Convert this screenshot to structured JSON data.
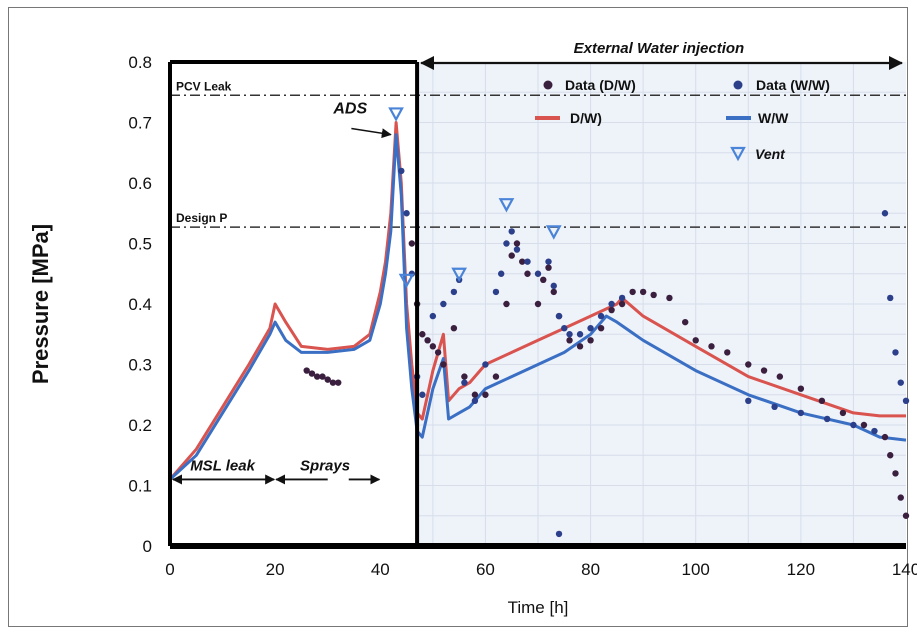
{
  "chart_data": {
    "type": "line",
    "title": "",
    "xlabel": "Time [h]",
    "ylabel": "Pressure [MPa]",
    "xlim": [
      0,
      140
    ],
    "ylim": [
      0,
      0.8
    ],
    "xticks": [
      "0",
      "20",
      "40",
      "60",
      "80",
      "100",
      "120",
      "140"
    ],
    "yticks": [
      "0",
      "0.1",
      "0.2",
      "0.3",
      "0.4",
      "0.5",
      "0.6",
      "0.7",
      "0.8"
    ],
    "legend_position": "top-right",
    "legend": {
      "data_dw": "Data (D/W)",
      "data_ww": "Data (W/W)",
      "dw": "D/W)",
      "ww": "W/W",
      "vent": "Vent"
    },
    "reference_lines": [
      {
        "label": "PCV Leak",
        "y": 0.745
      },
      {
        "label": "Design P",
        "y": 0.527
      }
    ],
    "annotations": {
      "ads": "ADS",
      "external_water": "External Water injection",
      "msl_leak": "MSL leak",
      "sprays": "Sprays"
    },
    "phases": [
      {
        "label": "MSL leak",
        "x": [
          0,
          20
        ]
      },
      {
        "label": "Sprays",
        "x": [
          21,
          40
        ]
      },
      {
        "label": "External Water injection",
        "x": [
          47,
          140
        ]
      }
    ],
    "colors": {
      "dw": "#d9534f",
      "ww": "#3a6fc4",
      "data_dw": "#3a1f3f",
      "data_ww": "#2b3f8a",
      "vent": "#4a84d8",
      "shade": "#eef2f9"
    },
    "series": [
      {
        "name": "D/W)",
        "color": "#d9534f",
        "x": [
          0,
          5,
          10,
          15,
          19,
          20,
          22,
          25,
          30,
          35,
          38,
          40,
          41,
          42,
          43,
          44,
          45,
          46,
          47,
          48,
          50,
          52,
          53,
          55,
          57,
          60,
          65,
          70,
          75,
          80,
          85,
          86,
          90,
          100,
          110,
          120,
          130,
          135,
          140
        ],
        "y": [
          0.11,
          0.16,
          0.23,
          0.3,
          0.36,
          0.4,
          0.37,
          0.33,
          0.325,
          0.33,
          0.35,
          0.42,
          0.47,
          0.55,
          0.7,
          0.6,
          0.4,
          0.3,
          0.22,
          0.21,
          0.29,
          0.35,
          0.24,
          0.26,
          0.27,
          0.3,
          0.32,
          0.34,
          0.36,
          0.38,
          0.4,
          0.41,
          0.38,
          0.33,
          0.28,
          0.25,
          0.22,
          0.215,
          0.215
        ]
      },
      {
        "name": "W/W",
        "color": "#3a6fc4",
        "x": [
          0,
          5,
          10,
          15,
          19,
          20,
          22,
          25,
          30,
          35,
          38,
          40,
          41,
          42,
          43,
          44,
          45,
          46,
          47,
          48,
          50,
          52,
          53,
          55,
          57,
          60,
          65,
          70,
          75,
          80,
          83,
          85,
          90,
          100,
          110,
          120,
          130,
          135,
          140
        ],
        "y": [
          0.11,
          0.15,
          0.22,
          0.29,
          0.35,
          0.37,
          0.34,
          0.32,
          0.32,
          0.325,
          0.34,
          0.4,
          0.45,
          0.52,
          0.68,
          0.58,
          0.36,
          0.26,
          0.19,
          0.18,
          0.26,
          0.31,
          0.21,
          0.22,
          0.23,
          0.26,
          0.28,
          0.3,
          0.32,
          0.35,
          0.38,
          0.37,
          0.34,
          0.29,
          0.25,
          0.22,
          0.2,
          0.18,
          0.175
        ]
      },
      {
        "name": "Data (D/W)",
        "color": "#3a1f3f",
        "mode": "markers",
        "x": [
          26,
          27,
          28,
          29,
          30,
          31,
          32,
          46,
          47,
          48,
          49,
          50,
          51,
          52,
          54,
          56,
          58,
          60,
          62,
          64,
          65,
          66,
          67,
          68,
          70,
          71,
          72,
          73,
          74,
          76,
          78,
          80,
          82,
          84,
          86,
          88,
          90,
          92,
          95,
          98,
          100,
          103,
          106,
          110,
          113,
          116,
          120,
          124,
          128,
          132,
          136,
          137,
          138,
          139,
          140
        ],
        "y": [
          0.29,
          0.285,
          0.28,
          0.28,
          0.275,
          0.27,
          0.27,
          0.5,
          0.4,
          0.35,
          0.34,
          0.33,
          0.32,
          0.3,
          0.36,
          0.28,
          0.25,
          0.25,
          0.28,
          0.4,
          0.48,
          0.5,
          0.47,
          0.45,
          0.4,
          0.44,
          0.46,
          0.42,
          0.38,
          0.34,
          0.33,
          0.34,
          0.36,
          0.39,
          0.4,
          0.42,
          0.42,
          0.415,
          0.41,
          0.37,
          0.34,
          0.33,
          0.32,
          0.3,
          0.29,
          0.28,
          0.26,
          0.24,
          0.22,
          0.2,
          0.18,
          0.15,
          0.12,
          0.08,
          0.05
        ]
      },
      {
        "name": "Data (W/W)",
        "color": "#2b3f8a",
        "mode": "markers",
        "x": [
          44,
          45,
          46,
          47,
          48,
          50,
          52,
          54,
          55,
          56,
          58,
          60,
          62,
          63,
          64,
          65,
          66,
          68,
          70,
          72,
          73,
          74,
          75,
          76,
          78,
          80,
          82,
          84,
          86,
          110,
          115,
          120,
          125,
          130,
          134,
          136,
          137,
          138,
          139,
          140,
          74
        ],
        "y": [
          0.62,
          0.55,
          0.45,
          0.28,
          0.25,
          0.38,
          0.4,
          0.42,
          0.44,
          0.27,
          0.24,
          0.3,
          0.42,
          0.45,
          0.5,
          0.52,
          0.49,
          0.47,
          0.45,
          0.47,
          0.43,
          0.38,
          0.36,
          0.35,
          0.35,
          0.36,
          0.38,
          0.4,
          0.41,
          0.24,
          0.23,
          0.22,
          0.21,
          0.2,
          0.19,
          0.55,
          0.41,
          0.32,
          0.27,
          0.24,
          0.02
        ]
      },
      {
        "name": "Vent",
        "color": "#4a84d8",
        "mode": "markers",
        "x": [
          43,
          55,
          64,
          73,
          45
        ],
        "y": [
          0.715,
          0.45,
          0.565,
          0.52,
          0.44
        ]
      }
    ]
  }
}
